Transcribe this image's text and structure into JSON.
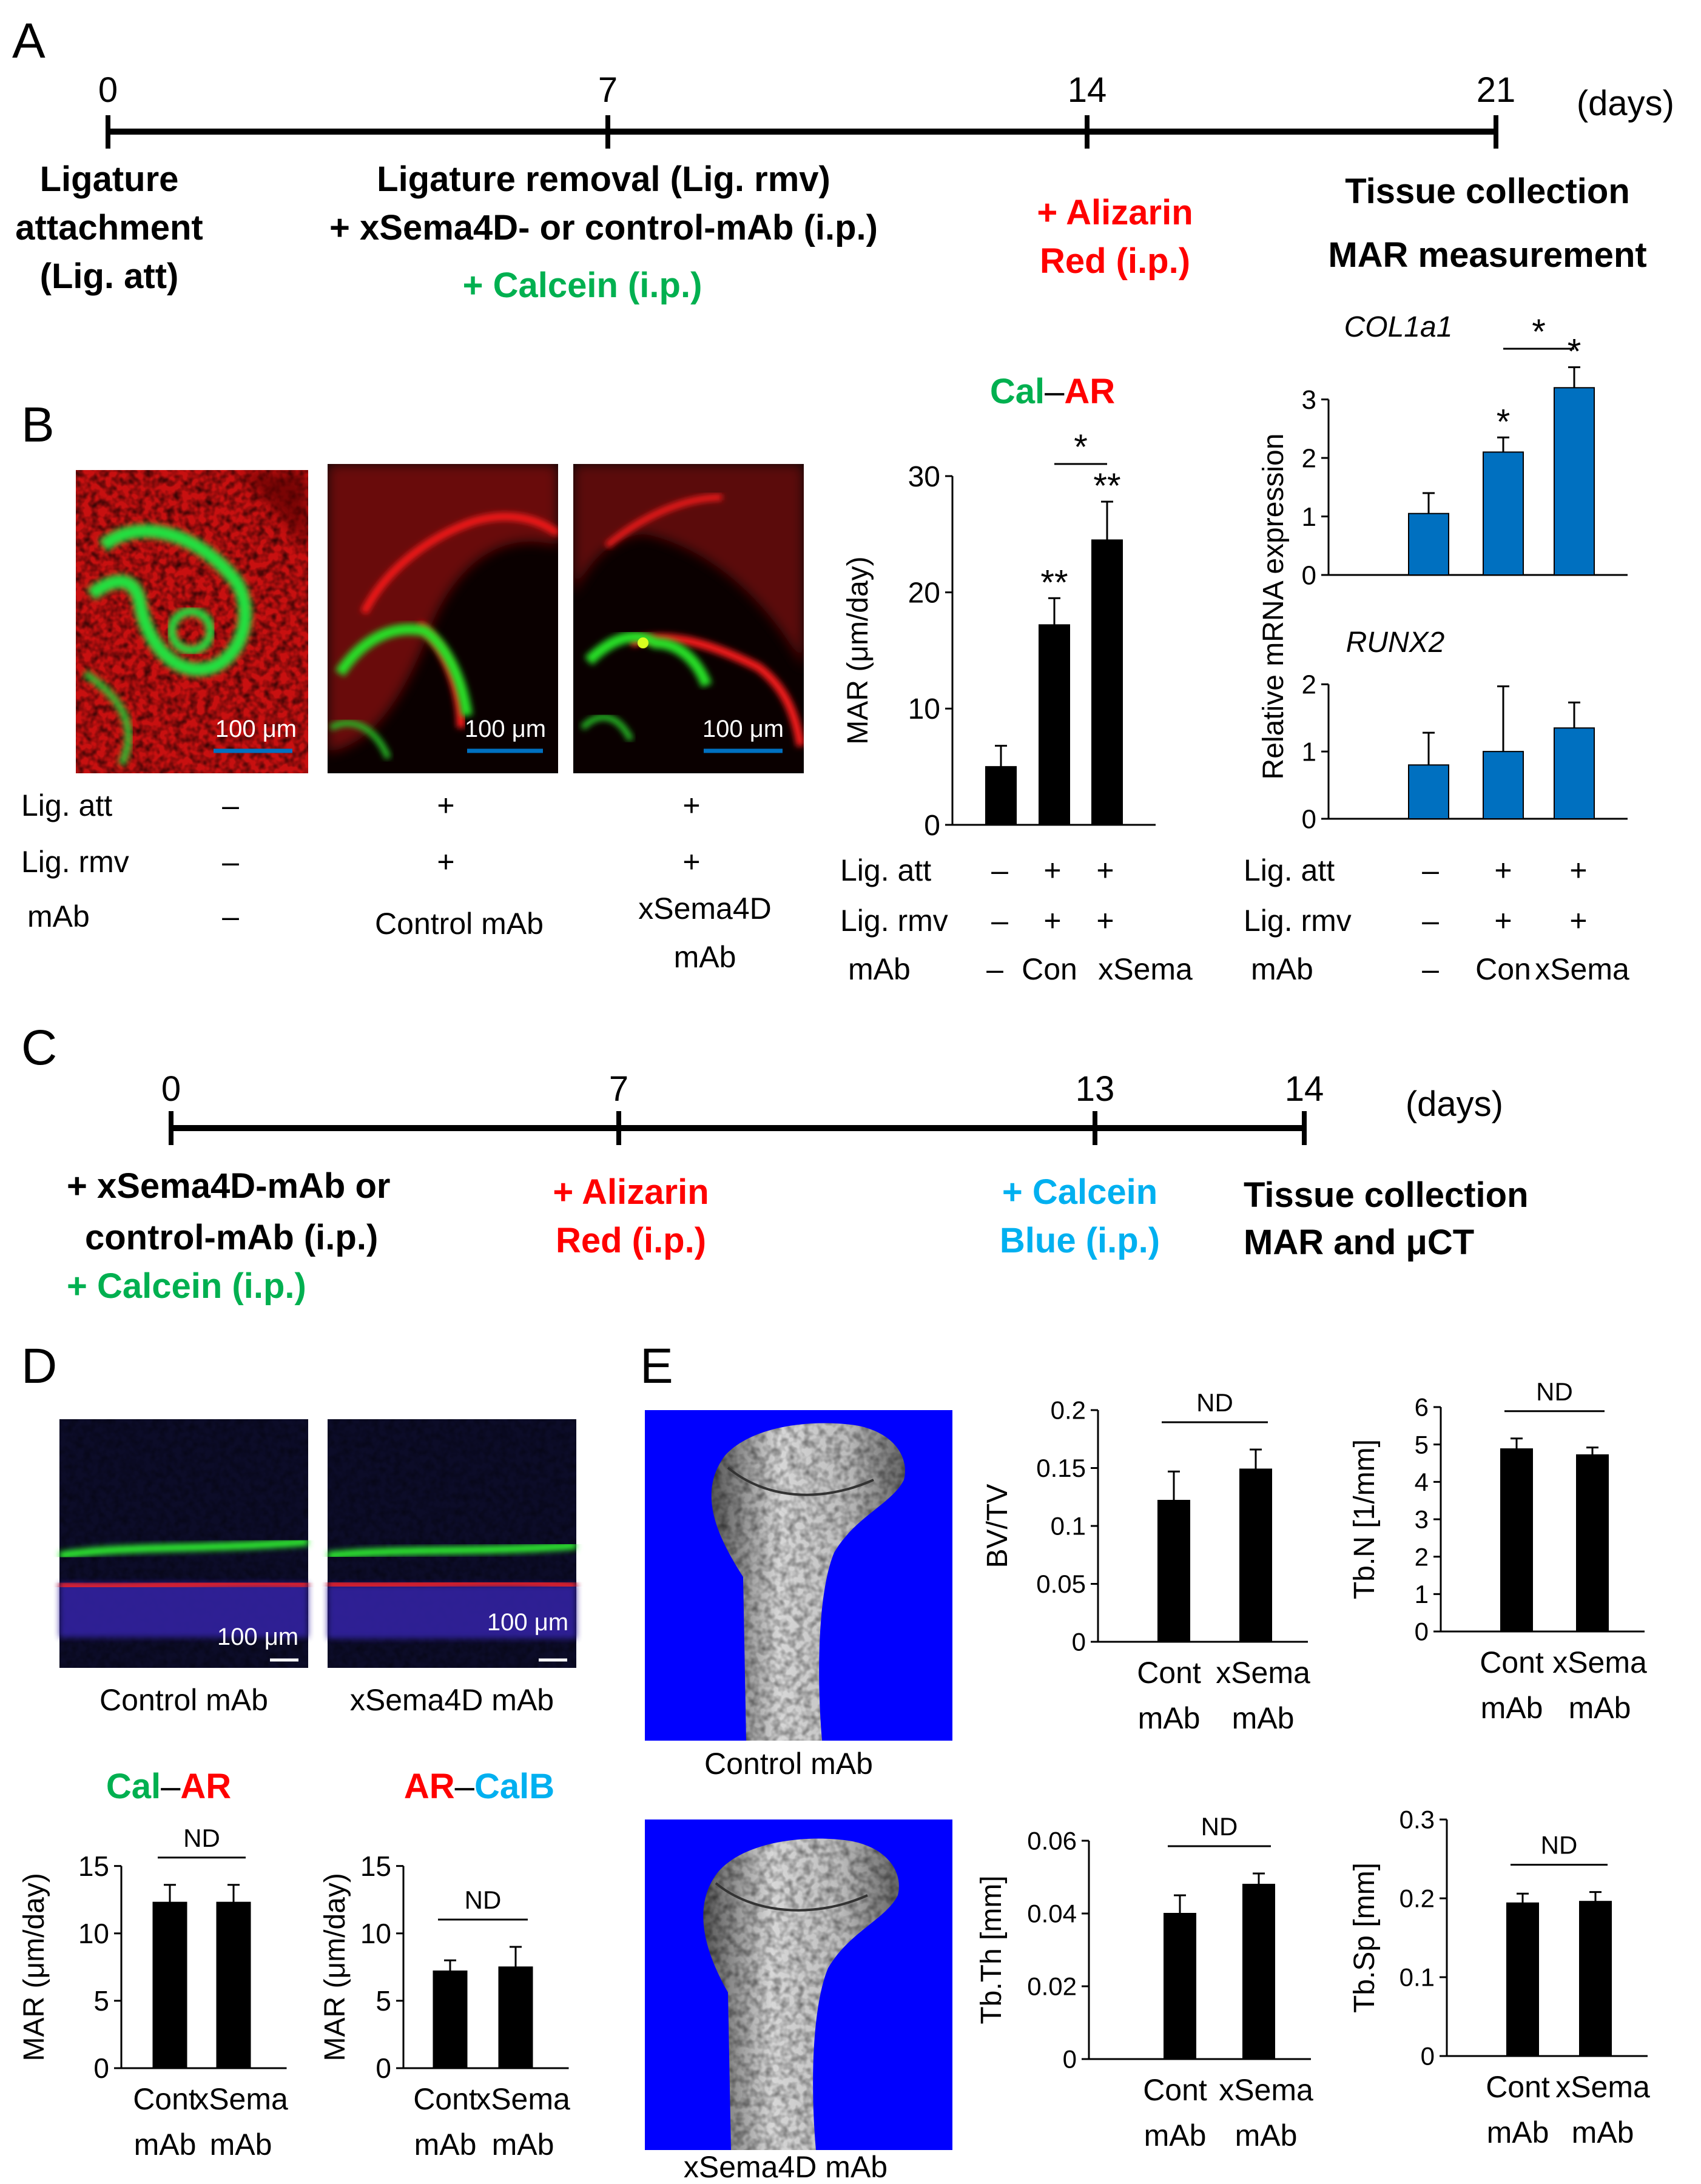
{
  "colors": {
    "green": "#00b050",
    "red": "#ff0000",
    "cyan": "#00b0f0",
    "blue_bar": "#0070c0",
    "black_bar": "#000000",
    "scalebar_blue": "#0070c0",
    "microct_bg": "#0000ff"
  },
  "panel_labels": {
    "A": "A",
    "B": "B",
    "C": "C",
    "D": "D",
    "E": "E"
  },
  "timeline_A": {
    "ticks": [
      "0",
      "7",
      "14",
      "21"
    ],
    "unit": "(days)",
    "events": {
      "d0": [
        "Ligature",
        "attachment",
        "(Lig. att)"
      ],
      "d7_line1": "Ligature removal (Lig. rmv)",
      "d7_line2": "+ xSema4D- or control-mAb  (i.p.)",
      "d7_line3": "+ Calcein (i.p.)",
      "d14": [
        "+ Alizarin",
        "Red (i.p.)"
      ],
      "d21": [
        "Tissue collection",
        "MAR measurement"
      ]
    }
  },
  "panel_B": {
    "scale_bar_label": "100 μm",
    "image_names": [
      "no-treatment-fluorescence-image",
      "control-mAb-fluorescence-image",
      "xsema4d-mAb-fluorescence-image"
    ],
    "conditions": {
      "lig_att_label": "Lig. att",
      "lig_rmv_label": "Lig. rmv",
      "mab_label": "mAb",
      "lig_att": [
        "–",
        "+",
        "+"
      ],
      "lig_rmv": [
        "–",
        "+",
        "+"
      ],
      "mab_col1": "–",
      "mab_col2": "Control mAb",
      "mab_col3": [
        "xSema4D",
        "mAb"
      ]
    },
    "mar_title_left": "Cal",
    "mar_title_sep": "–",
    "mar_title_right": "AR",
    "mar_chart_conditions": {
      "lig_att": [
        "–",
        "+",
        "+"
      ],
      "lig_rmv": [
        "–",
        "+",
        "+"
      ],
      "mab": [
        "–",
        "Con",
        "xSema"
      ]
    },
    "sig": {
      "star": "*",
      "double": "**"
    }
  },
  "timeline_C": {
    "ticks": [
      "0",
      "7",
      "13",
      "14"
    ],
    "unit": "(days)",
    "events": {
      "d0": [
        "+ xSema4D-mAb or",
        "control-mAb  (i.p.)"
      ],
      "d0_green": "+ Calcein (i.p.)",
      "d7": [
        "+ Alizarin",
        "Red (i.p.)"
      ],
      "d13": [
        "+ Calcein",
        "Blue (i.p.)"
      ],
      "d14": [
        "Tissue collection",
        "MAR and μCT"
      ]
    }
  },
  "panel_D": {
    "scale_bar_label": "100 μm",
    "captions": [
      "Control mAb",
      "xSema4D mAb"
    ],
    "chart1_title": {
      "left": "Cal",
      "sep": "–",
      "right": "AR"
    },
    "chart2_title": {
      "left": "AR",
      "sep": "–",
      "right": "CalB"
    },
    "nd": "ND",
    "cats": [
      [
        "Cont",
        "mAb"
      ],
      [
        "xSema",
        "mAb"
      ]
    ]
  },
  "panel_E": {
    "captions": [
      "Control mAb",
      "xSema4D mAb"
    ],
    "nd": "ND",
    "cats": [
      [
        "Cont",
        "mAb"
      ],
      [
        "xSema",
        "mAb"
      ]
    ]
  },
  "chart_data": [
    {
      "id": "B_MAR",
      "type": "bar",
      "ylabel": "MAR (μm/day)",
      "ylim": [
        0,
        30
      ],
      "yticks": [
        0,
        10,
        20,
        30
      ],
      "ytick_labels": [
        "0",
        "10",
        "20",
        "30"
      ],
      "values": [
        5,
        17.2,
        24.5
      ],
      "errors": [
        1.8,
        2.3,
        3.3
      ],
      "annotations": [
        "",
        "**",
        "**"
      ],
      "bracket": {
        "between": [
          1,
          2
        ],
        "label": "*"
      }
    },
    {
      "id": "B_COL1a1",
      "type": "bar",
      "title": "COL1a1",
      "ylabel": "Relative mRNA expression",
      "ylim": [
        0,
        3.4
      ],
      "yticks": [
        0,
        1,
        2,
        3
      ],
      "ytick_labels": [
        "0",
        "1",
        "2",
        "3"
      ],
      "values": [
        1.05,
        2.1,
        3.2
      ],
      "errors": [
        0.35,
        0.25,
        0.35
      ],
      "annotations": [
        "",
        "*",
        "*"
      ],
      "bracket": {
        "between": [
          1,
          2
        ],
        "label": "*"
      }
    },
    {
      "id": "B_RUNX2",
      "type": "bar",
      "title": "RUNX2",
      "ylim": [
        0,
        2.3
      ],
      "yticks": [
        0,
        1,
        2
      ],
      "ytick_labels": [
        "0",
        "1",
        "2"
      ],
      "values": [
        0.8,
        1.0,
        1.35
      ],
      "errors": [
        0.48,
        0.97,
        0.38
      ]
    },
    {
      "id": "D_CalAR",
      "type": "bar",
      "ylabel": "MAR (μm/day)",
      "ylim": [
        0,
        18
      ],
      "yticks": [
        0,
        5,
        10,
        15
      ],
      "ytick_labels": [
        "0",
        "5",
        "10",
        "15"
      ],
      "values": [
        12.3,
        12.3
      ],
      "errors": [
        1.3,
        1.3
      ]
    },
    {
      "id": "D_ARCalB",
      "type": "bar",
      "ylabel": "MAR (μm/day)",
      "ylim": [
        0,
        18
      ],
      "yticks": [
        0,
        5,
        10,
        15
      ],
      "ytick_labels": [
        "0",
        "5",
        "10",
        "15"
      ],
      "values": [
        7.2,
        7.5
      ],
      "errors": [
        0.8,
        1.5
      ]
    },
    {
      "id": "E_BVTV",
      "type": "bar",
      "ylabel": "BV/TV",
      "ylim": [
        0,
        0.2
      ],
      "yticks": [
        0,
        0.05,
        0.1,
        0.15,
        0.2
      ],
      "ytick_labels": [
        "0",
        "0.05",
        "0.1",
        "0.15",
        "0.2"
      ],
      "values": [
        0.122,
        0.149
      ],
      "errors": [
        0.025,
        0.017
      ]
    },
    {
      "id": "E_TbN",
      "type": "bar",
      "ylabel": "Tb.N [1/mm]",
      "ylim": [
        0,
        6
      ],
      "yticks": [
        0,
        1,
        2,
        3,
        4,
        5,
        6
      ],
      "ytick_labels": [
        "0",
        "1",
        "2",
        "3",
        "4",
        "5",
        "6"
      ],
      "values": [
        4.88,
        4.72
      ],
      "errors": [
        0.28,
        0.2
      ]
    },
    {
      "id": "E_TbTh",
      "type": "bar",
      "ylabel": "Tb.Th [mm]",
      "ylim": [
        0,
        0.06
      ],
      "yticks": [
        0,
        0.02,
        0.04,
        0.06
      ],
      "ytick_labels": [
        "0",
        "0.02",
        "0.04",
        "0.06"
      ],
      "values": [
        0.04,
        0.048
      ],
      "errors": [
        0.005,
        0.003
      ]
    },
    {
      "id": "E_TbSp",
      "type": "bar",
      "ylabel": "Tb.Sp [mm]",
      "ylim": [
        0,
        0.3
      ],
      "yticks": [
        0,
        0.1,
        0.2,
        0.3
      ],
      "ytick_labels": [
        "0",
        "0.1",
        "0.2",
        "0.3"
      ],
      "values": [
        0.194,
        0.196
      ],
      "errors": [
        0.012,
        0.012
      ]
    }
  ]
}
